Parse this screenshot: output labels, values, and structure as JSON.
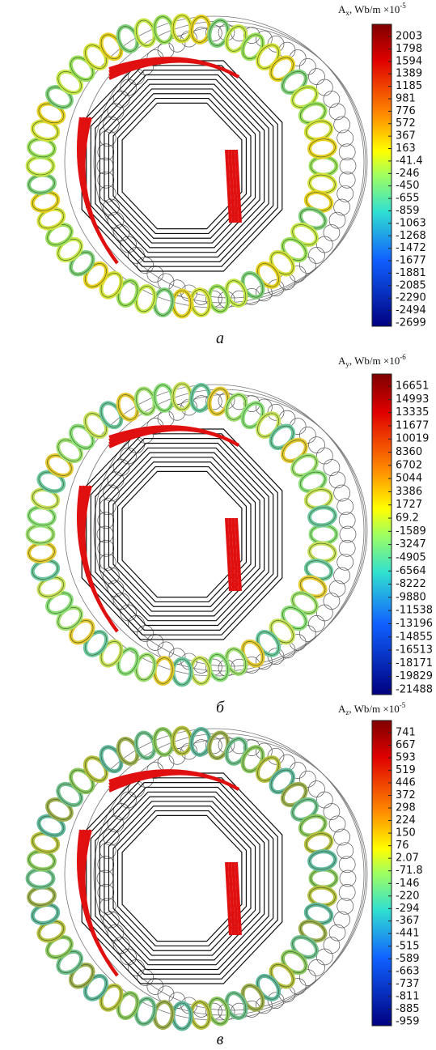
{
  "panels": [
    {
      "label": "a",
      "colorbar": {
        "symbol": "A",
        "subscript": "x",
        "unit": ", Wb/m ×10",
        "exponent": "-5",
        "ticks": [
          2003,
          1798,
          1594,
          1389,
          1185,
          981,
          776,
          572,
          367,
          163,
          -41.4,
          -246,
          -450,
          -655,
          -859,
          -1063,
          -1268,
          -1472,
          -1677,
          -1881,
          -2085,
          -2290,
          -2494,
          -2699
        ]
      }
    },
    {
      "label": "б",
      "colorbar": {
        "symbol": "A",
        "subscript": "y",
        "unit": ", Wb/m ×10",
        "exponent": "-6",
        "ticks": [
          16651,
          14993,
          13335,
          11677,
          10019,
          8360,
          6702,
          5044,
          3386,
          1727,
          69.2,
          -1589,
          -3247,
          -4905,
          -6564,
          -8222,
          -9880,
          -11538,
          -13196,
          -14855,
          -16513,
          -18171,
          -19829,
          -21488
        ]
      }
    },
    {
      "label": "в",
      "colorbar": {
        "symbol": "A",
        "subscript": "z",
        "unit": ", Wb/m ×10",
        "exponent": "-5",
        "ticks": [
          741,
          667,
          593,
          519,
          446,
          372,
          298,
          224,
          150,
          76,
          2.07,
          -71.8,
          -146,
          -220,
          -294,
          -367,
          -441,
          -515,
          -589,
          -663,
          -737,
          -811,
          -885,
          -959
        ]
      }
    }
  ]
}
